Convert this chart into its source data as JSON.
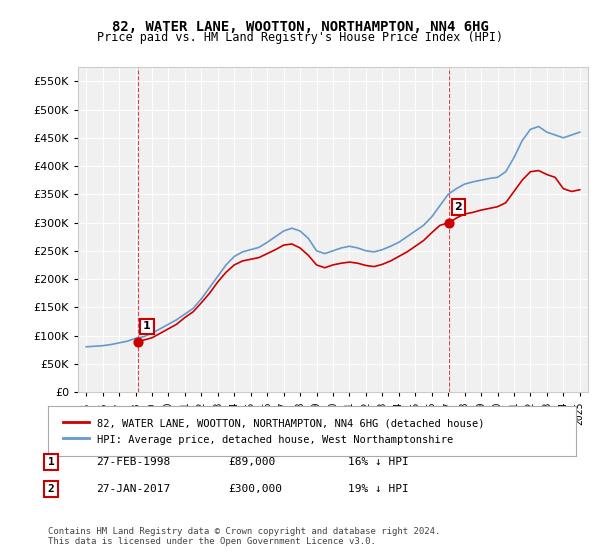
{
  "title": "82, WATER LANE, WOOTTON, NORTHAMPTON, NN4 6HG",
  "subtitle": "Price paid vs. HM Land Registry's House Price Index (HPI)",
  "sale1_label": "1",
  "sale1_date": "27-FEB-1998",
  "sale1_price": 89000,
  "sale1_hpi": "16% ↓ HPI",
  "sale1_x": 1998.15,
  "sale2_label": "2",
  "sale2_date": "27-JAN-2017",
  "sale2_price": 300000,
  "sale2_hpi": "19% ↓ HPI",
  "sale2_x": 2017.08,
  "legend_label1": "82, WATER LANE, WOOTTON, NORTHAMPTON, NN4 6HG (detached house)",
  "legend_label2": "HPI: Average price, detached house, West Northamptonshire",
  "footer": "Contains HM Land Registry data © Crown copyright and database right 2024.\nThis data is licensed under the Open Government Licence v3.0.",
  "line_color_red": "#cc0000",
  "line_color_blue": "#6699cc",
  "ylim": [
    0,
    575000
  ],
  "yticks": [
    0,
    50000,
    100000,
    150000,
    200000,
    250000,
    300000,
    350000,
    400000,
    450000,
    500000,
    550000
  ],
  "background_chart": "#f0f0f0",
  "background_fig": "#ffffff",
  "grid_color": "#ffffff"
}
